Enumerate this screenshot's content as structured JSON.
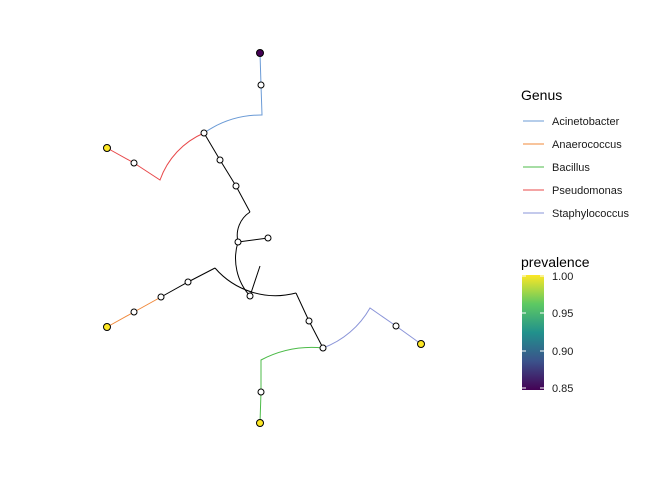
{
  "legend": {
    "genus_title": "Genus",
    "genus_items": [
      {
        "label": "Acinetobacter",
        "color": "#6b9bd6"
      },
      {
        "label": "Anaerococcus",
        "color": "#f0883a"
      },
      {
        "label": "Bacillus",
        "color": "#4cbb48"
      },
      {
        "label": "Pseudomonas",
        "color": "#e8484a"
      },
      {
        "label": "Staphylococcus",
        "color": "#8a94d8"
      }
    ],
    "prevalence_title": "prevalence",
    "prevalence_ticks": [
      "1.00",
      "0.95",
      "0.90",
      "0.85"
    ],
    "colorscale": [
      "#440154",
      "#3b528b",
      "#21918c",
      "#5ec962",
      "#fde725"
    ]
  },
  "tips": [
    {
      "genus": "Acinetobacter",
      "prevalence": 0.85,
      "color": "#440154"
    },
    {
      "genus": "Pseudomonas",
      "prevalence": 1.0,
      "color": "#fde725"
    },
    {
      "genus": "Anaerococcus",
      "prevalence": 1.0,
      "color": "#fde725"
    },
    {
      "genus": "Bacillus",
      "prevalence": 1.0,
      "color": "#fde725"
    },
    {
      "genus": "Staphylococcus",
      "prevalence": 1.0,
      "color": "#fde725"
    }
  ]
}
